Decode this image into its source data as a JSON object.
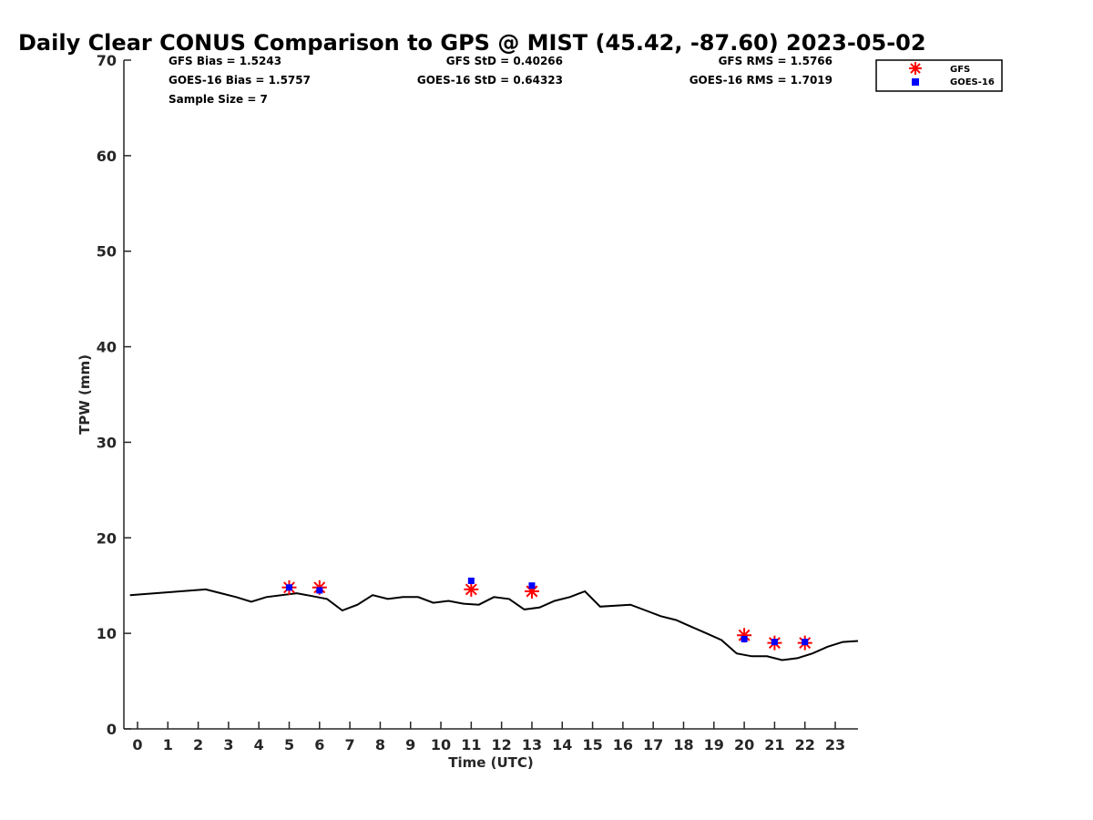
{
  "chart_data": {
    "type": "scatter",
    "title": "Daily Clear CONUS Comparison to GPS @ MIST (45.42, -87.60) 2023-05-02",
    "xlabel": "Time (UTC)",
    "ylabel": "TPW (mm)",
    "xlim": [
      -0.45,
      23.75
    ],
    "ylim": [
      0,
      70
    ],
    "xticks": [
      0,
      1,
      2,
      3,
      4,
      5,
      6,
      7,
      8,
      9,
      10,
      11,
      12,
      13,
      14,
      15,
      16,
      17,
      18,
      19,
      20,
      21,
      22,
      23
    ],
    "yticks": [
      0,
      10,
      20,
      30,
      40,
      50,
      60,
      70
    ],
    "grid": false,
    "legend_position": "top-right",
    "stats": {
      "gfs_bias": "GFS Bias = 1.5243",
      "goes_bias": "GOES-16 Bias = 1.5757",
      "sample_size": "Sample Size = 7",
      "gfs_std": "GFS StD = 0.40266",
      "goes_std": "GOES-16 StD = 0.64323",
      "gfs_rms": "GFS RMS = 1.5766",
      "goes_rms": "GOES-16 RMS = 1.7019"
    },
    "gps_line": {
      "x": [
        -0.25,
        2.25,
        2.75,
        3.25,
        3.75,
        4.25,
        5.25,
        5.75,
        6.25,
        6.75,
        7.25,
        7.75,
        8.25,
        8.75,
        9.25,
        9.75,
        10.25,
        10.75,
        11.25,
        11.75,
        12.25,
        12.75,
        13.25,
        13.75,
        14.25,
        14.75,
        15.25,
        16.25,
        16.75,
        17.25,
        17.75,
        18.25,
        18.75,
        19.25,
        19.75,
        20.25,
        20.75,
        21.25,
        21.75,
        22.25,
        22.75,
        23.25,
        23.75
      ],
      "y": [
        14.0,
        14.6,
        14.2,
        13.8,
        13.3,
        13.8,
        14.2,
        13.9,
        13.6,
        12.4,
        13.0,
        14.0,
        13.6,
        13.8,
        13.8,
        13.2,
        13.4,
        13.1,
        13.0,
        13.8,
        13.6,
        12.5,
        12.7,
        13.4,
        13.8,
        14.4,
        12.8,
        13.0,
        12.4,
        11.8,
        11.4,
        10.7,
        10.0,
        9.3,
        7.9,
        7.6,
        7.6,
        7.2,
        7.4,
        7.9,
        8.6,
        9.1,
        9.2
      ]
    },
    "series": [
      {
        "name": "GFS",
        "color": "#ff0000",
        "marker": "asterisk",
        "x": [
          5,
          6,
          11,
          13,
          20,
          21,
          22
        ],
        "y": [
          14.8,
          14.8,
          14.6,
          14.4,
          9.8,
          9.0,
          9.0
        ]
      },
      {
        "name": "GOES-16",
        "color": "#0000ff",
        "marker": "square",
        "x": [
          5,
          6,
          11,
          13,
          20,
          21,
          22
        ],
        "y": [
          14.8,
          14.5,
          15.5,
          15.0,
          9.4,
          9.1,
          9.1
        ]
      }
    ],
    "line_color": "#000000"
  }
}
